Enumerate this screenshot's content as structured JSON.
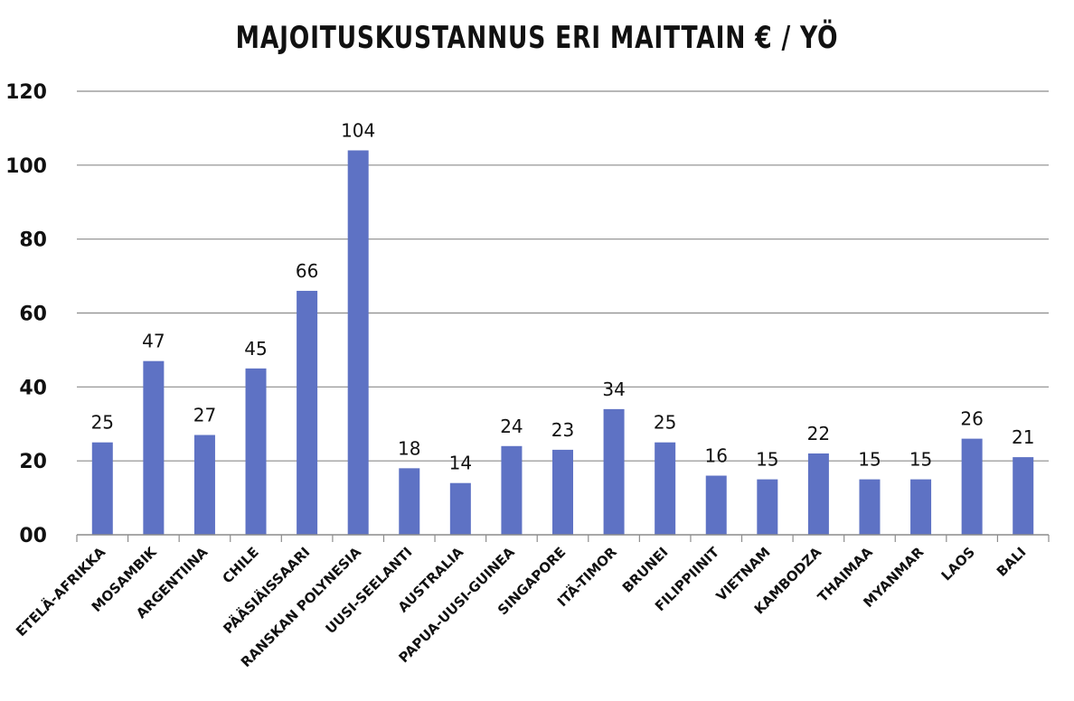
{
  "chart_data": {
    "type": "bar",
    "title": "MAJOITUSKUSTANNUS ERI MAITTAIN € / YÖ",
    "xlabel": "",
    "ylabel": "",
    "ylim": [
      0,
      120
    ],
    "yticks": [
      0,
      20,
      40,
      60,
      80,
      100,
      120
    ],
    "ytick_labels": [
      "00",
      "20",
      "40",
      "60",
      "80",
      "100",
      "120"
    ],
    "grid": true,
    "legend": "none",
    "bar_color": "#5E72C4",
    "categories": [
      "ETELÄ-AFRIKKA",
      "MOSAMBIK",
      "ARGENTIINA",
      "CHILE",
      "PÄÄSIÄISSAARI",
      "RANSKAN POLYNESIA",
      "UUSI-SEELANTI",
      "AUSTRALIA",
      "PAPUA-UUSI-GUINEA",
      "SINGAPORE",
      "ITÄ-TIMOR",
      "BRUNEI",
      "FILIPPIINIT",
      "VIETNAM",
      "KAMBODZA",
      "THAIMAA",
      "MYANMAR",
      "LAOS",
      "BALI"
    ],
    "values": [
      25,
      47,
      27,
      45,
      66,
      104,
      18,
      14,
      24,
      23,
      34,
      25,
      16,
      15,
      22,
      15,
      15,
      26,
      21
    ]
  }
}
